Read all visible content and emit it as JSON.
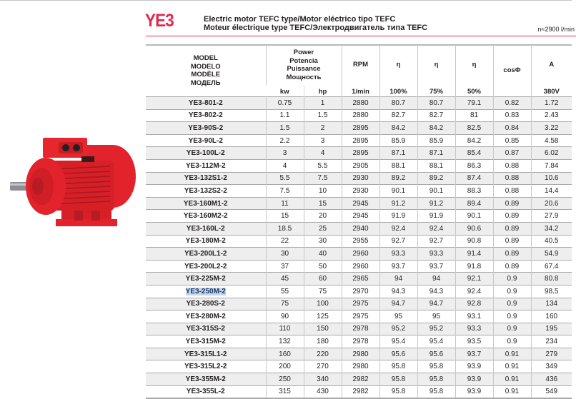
{
  "header": {
    "brand": "YE3",
    "title_line1": "Electric motor TEFC type/Motor eléctrico tipo TEFC",
    "title_line2": "Moteur électrique type TEFC/Электродвигатель типа TEFC",
    "speed": "n≈2900 l/min",
    "accent_color": "#e0284f"
  },
  "image": {
    "label": "red-electric-motor-photo",
    "body_color": "#e3232b"
  },
  "table": {
    "headers": {
      "model": [
        "MODEL",
        "MODELO",
        "MODÈLE",
        "МОДЕЛЬ"
      ],
      "power": [
        "Power",
        "Potencia",
        "Puissance",
        "Мощность"
      ],
      "rpm": "RPM",
      "eta1": "η",
      "eta2": "η",
      "eta3": "η",
      "cos": "cosΦ",
      "amp": "A"
    },
    "units": {
      "kw": "kw",
      "hp": "hp",
      "rpm": "1/min",
      "eta1": "100%",
      "eta2": "75%",
      "eta3": "50%",
      "cos": "",
      "amp": "380V"
    },
    "selected_row_index": 15,
    "rows": [
      {
        "model": "YE3-801-2",
        "kw": "0.75",
        "hp": "1",
        "rpm": "2880",
        "e100": "80.7",
        "e75": "80.7",
        "e50": "79.1",
        "cos": "0.82",
        "a": "1.72"
      },
      {
        "model": "YE3-802-2",
        "kw": "1.1",
        "hp": "1.5",
        "rpm": "2880",
        "e100": "82.7",
        "e75": "82.7",
        "e50": "81",
        "cos": "0.83",
        "a": "2.43"
      },
      {
        "model": "YE3-90S-2",
        "kw": "1.5",
        "hp": "2",
        "rpm": "2895",
        "e100": "84.2",
        "e75": "84.2",
        "e50": "82.5",
        "cos": "0.84",
        "a": "3.22"
      },
      {
        "model": "YE3-90L-2",
        "kw": "2.2",
        "hp": "3",
        "rpm": "2895",
        "e100": "85.9",
        "e75": "85.9",
        "e50": "84.2",
        "cos": "0.85",
        "a": "4.58"
      },
      {
        "model": "YE3-100L-2",
        "kw": "3",
        "hp": "4",
        "rpm": "2895",
        "e100": "87.1",
        "e75": "87.1",
        "e50": "85.4",
        "cos": "0.87",
        "a": "6.02"
      },
      {
        "model": "YE3-112M-2",
        "kw": "4",
        "hp": "5.5",
        "rpm": "2905",
        "e100": "88.1",
        "e75": "88.1",
        "e50": "86.3",
        "cos": "0.88",
        "a": "7.84"
      },
      {
        "model": "YE3-132S1-2",
        "kw": "5.5",
        "hp": "7.5",
        "rpm": "2930",
        "e100": "89.2",
        "e75": "89.2",
        "e50": "87.4",
        "cos": "0.88",
        "a": "10.6"
      },
      {
        "model": "YE3-132S2-2",
        "kw": "7.5",
        "hp": "10",
        "rpm": "2930",
        "e100": "90.1",
        "e75": "90.1",
        "e50": "88.3",
        "cos": "0.88",
        "a": "14.4"
      },
      {
        "model": "YE3-160M1-2",
        "kw": "11",
        "hp": "15",
        "rpm": "2945",
        "e100": "91.2",
        "e75": "91.2",
        "e50": "89.4",
        "cos": "0.89",
        "a": "20.6"
      },
      {
        "model": "YE3-160M2-2",
        "kw": "15",
        "hp": "20",
        "rpm": "2945",
        "e100": "91.9",
        "e75": "91.9",
        "e50": "90.1",
        "cos": "0.89",
        "a": "27.9"
      },
      {
        "model": "YE3-160L-2",
        "kw": "18.5",
        "hp": "25",
        "rpm": "2940",
        "e100": "92.4",
        "e75": "92.4",
        "e50": "90.6",
        "cos": "0.89",
        "a": "34.2"
      },
      {
        "model": "YE3-180M-2",
        "kw": "22",
        "hp": "30",
        "rpm": "2955",
        "e100": "92.7",
        "e75": "92.7",
        "e50": "90.8",
        "cos": "0.89",
        "a": "40.5"
      },
      {
        "model": "YE3-200L1-2",
        "kw": "30",
        "hp": "40",
        "rpm": "2960",
        "e100": "93.3",
        "e75": "93.3",
        "e50": "91.4",
        "cos": "0.89",
        "a": "54.9"
      },
      {
        "model": "YE3-200L2-2",
        "kw": "37",
        "hp": "50",
        "rpm": "2960",
        "e100": "93.7",
        "e75": "93.7",
        "e50": "91.8",
        "cos": "0.89",
        "a": "67.4"
      },
      {
        "model": "YE3-225M-2",
        "kw": "45",
        "hp": "60",
        "rpm": "2965",
        "e100": "94",
        "e75": "94",
        "e50": "92.1",
        "cos": "0.9",
        "a": "80.8"
      },
      {
        "model": "YE3-250M-2",
        "kw": "55",
        "hp": "75",
        "rpm": "2970",
        "e100": "94.3",
        "e75": "94.3",
        "e50": "92.4",
        "cos": "0.9",
        "a": "98.5"
      },
      {
        "model": "YE3-280S-2",
        "kw": "75",
        "hp": "100",
        "rpm": "2975",
        "e100": "94.7",
        "e75": "94.7",
        "e50": "92.8",
        "cos": "0.9",
        "a": "134"
      },
      {
        "model": "YE3-280M-2",
        "kw": "90",
        "hp": "125",
        "rpm": "2975",
        "e100": "95",
        "e75": "95",
        "e50": "93.1",
        "cos": "0.9",
        "a": "160"
      },
      {
        "model": "YE3-315S-2",
        "kw": "110",
        "hp": "150",
        "rpm": "2978",
        "e100": "95.2",
        "e75": "95.2",
        "e50": "93.3",
        "cos": "0.9",
        "a": "195"
      },
      {
        "model": "YE3-315M-2",
        "kw": "132",
        "hp": "180",
        "rpm": "2978",
        "e100": "95.4",
        "e75": "95.4",
        "e50": "93.5",
        "cos": "0.9",
        "a": "234"
      },
      {
        "model": "YE3-315L1-2",
        "kw": "160",
        "hp": "220",
        "rpm": "2980",
        "e100": "95.6",
        "e75": "95.6",
        "e50": "93.7",
        "cos": "0.91",
        "a": "279"
      },
      {
        "model": "YE3-315L2-2",
        "kw": "200",
        "hp": "270",
        "rpm": "2980",
        "e100": "95.8",
        "e75": "95.8",
        "e50": "93.9",
        "cos": "0.91",
        "a": "349"
      },
      {
        "model": "YE3-355M-2",
        "kw": "250",
        "hp": "340",
        "rpm": "2982",
        "e100": "95.8",
        "e75": "95.8",
        "e50": "93.9",
        "cos": "0.91",
        "a": "436"
      },
      {
        "model": "YE3-355L-2",
        "kw": "315",
        "hp": "430",
        "rpm": "2982",
        "e100": "95.8",
        "e75": "95.8",
        "e50": "93.9",
        "cos": "0.91",
        "a": "549"
      }
    ]
  }
}
